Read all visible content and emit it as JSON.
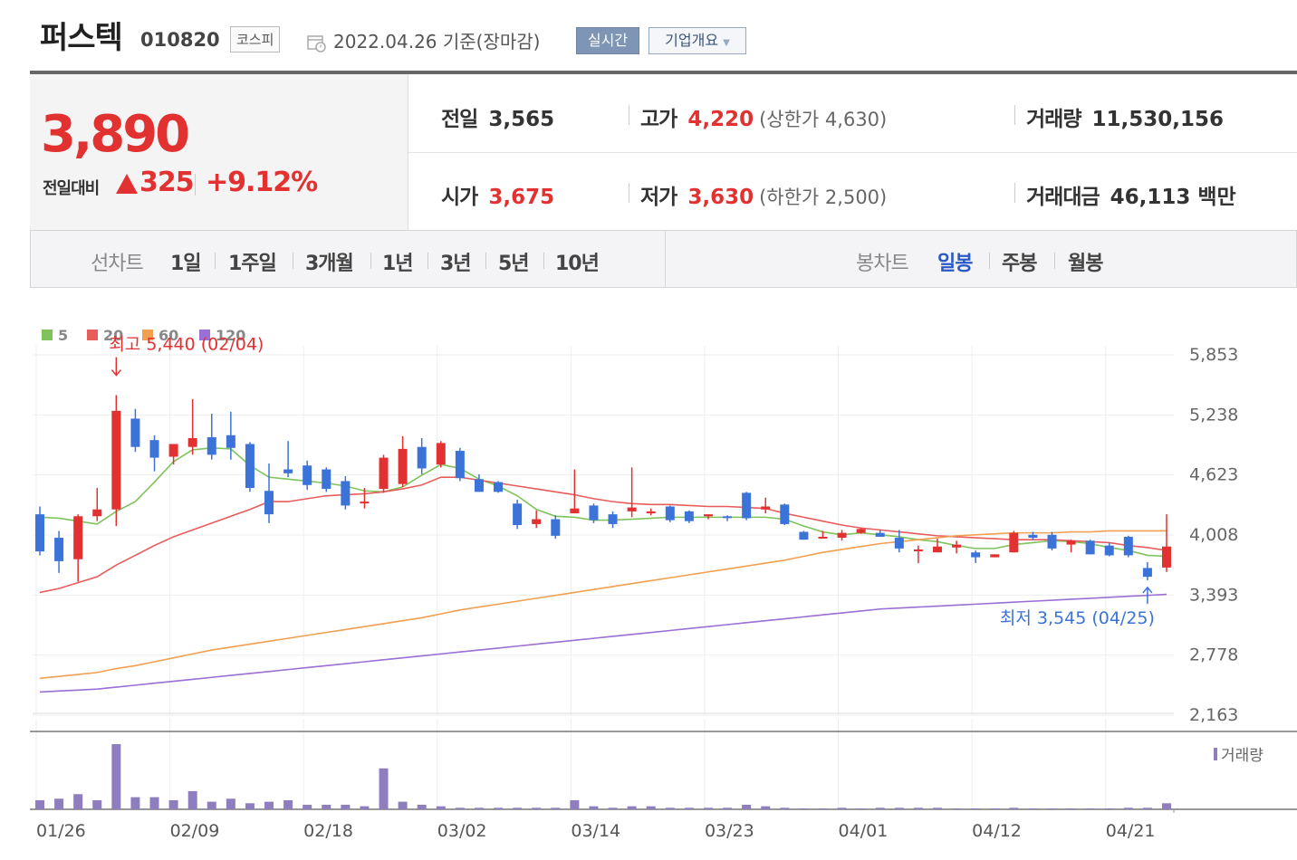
{
  "header": {
    "name": "퍼스텍",
    "code": "010820",
    "market": "코스피",
    "date": "2022.04.26 기준(장마감)",
    "realtime_label": "실시간",
    "company_label": "기업개요"
  },
  "price": {
    "current": "3,890",
    "change_label": "전일대비",
    "change": "325",
    "percent": "+9.12%"
  },
  "stats": {
    "prev_label": "전일",
    "prev": "3,565",
    "high_label": "고가",
    "high": "4,220",
    "upper_limit": "(상한가 4,630)",
    "volume_label": "거래량",
    "volume": "11,530,156",
    "open_label": "시가",
    "open": "3,675",
    "low_label": "저가",
    "low": "3,630",
    "lower_limit": "(하한가 2,500)",
    "amount_label": "거래대금",
    "amount": "46,113 백만"
  },
  "tabs": {
    "line_label": "선차트",
    "line": [
      "1일",
      "1주일",
      "3개월",
      "1년",
      "3년",
      "5년",
      "10년"
    ],
    "candle_label": "봉차트",
    "candle": [
      "일봉",
      "주봉",
      "월봉"
    ]
  },
  "colors": {
    "up": "#e23131",
    "down": "#3b73d9",
    "ma5": "#7fc35b",
    "ma20": "#e85c5c",
    "ma60": "#f0a050",
    "ma120": "#9b6fd6",
    "volume": "#8e7ec0"
  },
  "chart_data": {
    "type": "candlestick",
    "y_ticks": [
      "5,853",
      "5,238",
      "4,623",
      "4,008",
      "3,393",
      "2,778",
      "2,163"
    ],
    "ylim": [
      2163,
      5853
    ],
    "x_tick_labels": [
      "01/26",
      "02/09",
      "02/18",
      "03/02",
      "03/14",
      "03/23",
      "04/01",
      "04/12",
      "04/21"
    ],
    "x_tick_indices": [
      0,
      7,
      14,
      21,
      28,
      35,
      42,
      49,
      56
    ],
    "legend": [
      "5",
      "20",
      "60",
      "120"
    ],
    "volume_label": "거래량",
    "annotations": {
      "high": {
        "label": "최고 5,440 (02/04)",
        "index": 4,
        "value": 5440
      },
      "low": {
        "label": "최저 3,545 (04/25)",
        "index": 58,
        "value": 3545
      }
    },
    "candles": [
      {
        "o": 4220,
        "h": 4300,
        "l": 3800,
        "c": 3840
      },
      {
        "o": 3980,
        "h": 4050,
        "l": 3620,
        "c": 3740
      },
      {
        "o": 3760,
        "h": 4220,
        "l": 3530,
        "c": 4200
      },
      {
        "o": 4200,
        "h": 4490,
        "l": 4150,
        "c": 4270
      },
      {
        "o": 4270,
        "h": 5440,
        "l": 4100,
        "c": 5280
      },
      {
        "o": 5200,
        "h": 5300,
        "l": 4860,
        "c": 4910
      },
      {
        "o": 4980,
        "h": 5030,
        "l": 4660,
        "c": 4800
      },
      {
        "o": 4810,
        "h": 4940,
        "l": 4730,
        "c": 4940
      },
      {
        "o": 4910,
        "h": 5400,
        "l": 4830,
        "c": 5000
      },
      {
        "o": 5010,
        "h": 5250,
        "l": 4780,
        "c": 4830
      },
      {
        "o": 5030,
        "h": 5270,
        "l": 4780,
        "c": 4900
      },
      {
        "o": 4940,
        "h": 4960,
        "l": 4450,
        "c": 4490
      },
      {
        "o": 4460,
        "h": 4740,
        "l": 4130,
        "c": 4220
      },
      {
        "o": 4680,
        "h": 4970,
        "l": 4600,
        "c": 4640
      },
      {
        "o": 4720,
        "h": 4770,
        "l": 4470,
        "c": 4520
      },
      {
        "o": 4680,
        "h": 4700,
        "l": 4450,
        "c": 4480
      },
      {
        "o": 4560,
        "h": 4610,
        "l": 4270,
        "c": 4310
      },
      {
        "o": 4340,
        "h": 4490,
        "l": 4280,
        "c": 4350
      },
      {
        "o": 4480,
        "h": 4830,
        "l": 4440,
        "c": 4800
      },
      {
        "o": 4530,
        "h": 5020,
        "l": 4500,
        "c": 4890
      },
      {
        "o": 4910,
        "h": 5000,
        "l": 4630,
        "c": 4690
      },
      {
        "o": 4730,
        "h": 4970,
        "l": 4700,
        "c": 4950
      },
      {
        "o": 4870,
        "h": 4900,
        "l": 4560,
        "c": 4590
      },
      {
        "o": 4580,
        "h": 4630,
        "l": 4450,
        "c": 4450
      },
      {
        "o": 4550,
        "h": 4560,
        "l": 4440,
        "c": 4450
      },
      {
        "o": 4330,
        "h": 4370,
        "l": 4070,
        "c": 4110
      },
      {
        "o": 4120,
        "h": 4260,
        "l": 4080,
        "c": 4170
      },
      {
        "o": 4170,
        "h": 4210,
        "l": 3970,
        "c": 4000
      },
      {
        "o": 4230,
        "h": 4680,
        "l": 4230,
        "c": 4280
      },
      {
        "o": 4310,
        "h": 4330,
        "l": 4130,
        "c": 4160
      },
      {
        "o": 4220,
        "h": 4250,
        "l": 4080,
        "c": 4120
      },
      {
        "o": 4250,
        "h": 4700,
        "l": 4190,
        "c": 4290
      },
      {
        "o": 4230,
        "h": 4280,
        "l": 4210,
        "c": 4250
      },
      {
        "o": 4300,
        "h": 4310,
        "l": 4140,
        "c": 4160
      },
      {
        "o": 4250,
        "h": 4260,
        "l": 4130,
        "c": 4150
      },
      {
        "o": 4200,
        "h": 4220,
        "l": 4170,
        "c": 4220
      },
      {
        "o": 4200,
        "h": 4210,
        "l": 4150,
        "c": 4190
      },
      {
        "o": 4440,
        "h": 4450,
        "l": 4160,
        "c": 4180
      },
      {
        "o": 4270,
        "h": 4390,
        "l": 4230,
        "c": 4300
      },
      {
        "o": 4320,
        "h": 4330,
        "l": 4110,
        "c": 4120
      },
      {
        "o": 4040,
        "h": 4050,
        "l": 3960,
        "c": 3960
      },
      {
        "o": 3990,
        "h": 4050,
        "l": 3980,
        "c": 3990
      },
      {
        "o": 3980,
        "h": 4060,
        "l": 3950,
        "c": 4030
      },
      {
        "o": 4030,
        "h": 4080,
        "l": 4020,
        "c": 4070
      },
      {
        "o": 4030,
        "h": 4060,
        "l": 3990,
        "c": 3990
      },
      {
        "o": 3980,
        "h": 4060,
        "l": 3830,
        "c": 3870
      },
      {
        "o": 3860,
        "h": 3900,
        "l": 3720,
        "c": 3860
      },
      {
        "o": 3830,
        "h": 3970,
        "l": 3830,
        "c": 3890
      },
      {
        "o": 3880,
        "h": 3950,
        "l": 3820,
        "c": 3910
      },
      {
        "o": 3830,
        "h": 3850,
        "l": 3720,
        "c": 3780
      },
      {
        "o": 3780,
        "h": 3810,
        "l": 3780,
        "c": 3810
      },
      {
        "o": 3830,
        "h": 4050,
        "l": 3830,
        "c": 4030
      },
      {
        "o": 4010,
        "h": 4040,
        "l": 3960,
        "c": 3980
      },
      {
        "o": 4010,
        "h": 4040,
        "l": 3850,
        "c": 3870
      },
      {
        "o": 3910,
        "h": 3960,
        "l": 3830,
        "c": 3950
      },
      {
        "o": 3950,
        "h": 3960,
        "l": 3810,
        "c": 3810
      },
      {
        "o": 3900,
        "h": 3930,
        "l": 3790,
        "c": 3800
      },
      {
        "o": 3990,
        "h": 4000,
        "l": 3780,
        "c": 3800
      },
      {
        "o": 3670,
        "h": 3730,
        "l": 3545,
        "c": 3580
      },
      {
        "o": 3675,
        "h": 4220,
        "l": 3630,
        "c": 3890
      }
    ],
    "volume": [
      6,
      7,
      10,
      6,
      43,
      8,
      8,
      6,
      12,
      5,
      7,
      4,
      5,
      6,
      3,
      3,
      3,
      2,
      27,
      5,
      3,
      2,
      1,
      1,
      1,
      1,
      1,
      1,
      6,
      2,
      1,
      2,
      2,
      1,
      1,
      1,
      1,
      3,
      2,
      1,
      0,
      0,
      1,
      0,
      1,
      1,
      1,
      1,
      0,
      0,
      0,
      1,
      0,
      0,
      0,
      0,
      0,
      1,
      1,
      4
    ],
    "series": [
      {
        "name": "5",
        "values": [
          4190,
          4180,
          4150,
          4120,
          4250,
          4350,
          4550,
          4760,
          4880,
          4900,
          4890,
          4720,
          4600,
          4580,
          4560,
          4540,
          4510,
          4460,
          4450,
          4500,
          4620,
          4730,
          4690,
          4580,
          4510,
          4410,
          4270,
          4200,
          4190,
          4160,
          4160,
          4170,
          4180,
          4190,
          4190,
          4190,
          4190,
          4190,
          4190,
          4170,
          4100,
          4040,
          4010,
          4030,
          4010,
          3990,
          3960,
          3940,
          3900,
          3870,
          3870,
          3910,
          3930,
          3950,
          3940,
          3920,
          3880,
          3850,
          3800,
          3790
        ]
      },
      {
        "name": "20",
        "values": [
          3420,
          3460,
          3520,
          3580,
          3700,
          3800,
          3900,
          3990,
          4060,
          4130,
          4200,
          4270,
          4350,
          4350,
          4380,
          4410,
          4420,
          4430,
          4450,
          4480,
          4520,
          4600,
          4600,
          4570,
          4540,
          4510,
          4480,
          4450,
          4420,
          4380,
          4350,
          4330,
          4320,
          4320,
          4310,
          4300,
          4300,
          4290,
          4280,
          4230,
          4190,
          4150,
          4110,
          4080,
          4060,
          4040,
          4020,
          4000,
          3990,
          3980,
          3970,
          3960,
          3960,
          3960,
          3950,
          3940,
          3930,
          3900,
          3880,
          3850
        ]
      },
      {
        "name": "60",
        "values": [
          2540,
          2560,
          2580,
          2600,
          2640,
          2670,
          2710,
          2750,
          2790,
          2830,
          2860,
          2890,
          2920,
          2950,
          2980,
          3010,
          3040,
          3070,
          3100,
          3130,
          3160,
          3200,
          3240,
          3270,
          3300,
          3330,
          3360,
          3390,
          3420,
          3450,
          3480,
          3510,
          3540,
          3570,
          3600,
          3630,
          3660,
          3690,
          3720,
          3750,
          3790,
          3830,
          3860,
          3890,
          3920,
          3940,
          3960,
          3980,
          4000,
          4010,
          4020,
          4030,
          4030,
          4030,
          4040,
          4040,
          4050,
          4050,
          4050,
          4050
        ]
      },
      {
        "name": "120",
        "values": [
          2400,
          2410,
          2420,
          2430,
          2450,
          2470,
          2490,
          2510,
          2530,
          2550,
          2570,
          2590,
          2610,
          2630,
          2650,
          2670,
          2690,
          2710,
          2730,
          2750,
          2770,
          2790,
          2810,
          2830,
          2850,
          2870,
          2890,
          2910,
          2930,
          2950,
          2970,
          2990,
          3010,
          3030,
          3050,
          3070,
          3090,
          3110,
          3130,
          3150,
          3170,
          3190,
          3210,
          3230,
          3250,
          3260,
          3270,
          3280,
          3290,
          3300,
          3310,
          3320,
          3330,
          3340,
          3350,
          3360,
          3370,
          3380,
          3390,
          3400
        ]
      }
    ]
  }
}
